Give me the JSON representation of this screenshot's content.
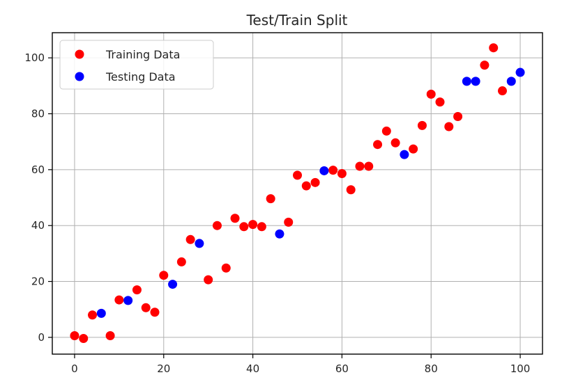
{
  "chart_data": {
    "type": "scatter",
    "title": "Test/Train Split",
    "xlabel": "",
    "ylabel": "",
    "xlim": [
      -5,
      105
    ],
    "ylim": [
      -6,
      109
    ],
    "xticks": [
      0,
      20,
      40,
      60,
      80,
      100
    ],
    "yticks": [
      0,
      20,
      40,
      60,
      80,
      100
    ],
    "grid": true,
    "legend_position": "top-left",
    "series": [
      {
        "name": "Training Data",
        "color": "#ff0000",
        "points": [
          [
            0,
            0.6
          ],
          [
            2,
            -0.4
          ],
          [
            4,
            8
          ],
          [
            8,
            0.6
          ],
          [
            10,
            13.4
          ],
          [
            14,
            17
          ],
          [
            16,
            10.6
          ],
          [
            18,
            9
          ],
          [
            20,
            22.2
          ],
          [
            24,
            27
          ],
          [
            26,
            35
          ],
          [
            30,
            20.6
          ],
          [
            32,
            40
          ],
          [
            34,
            24.8
          ],
          [
            36,
            42.6
          ],
          [
            38,
            39.6
          ],
          [
            40,
            40.4
          ],
          [
            42,
            39.6
          ],
          [
            44,
            49.6
          ],
          [
            48,
            41.2
          ],
          [
            50,
            58
          ],
          [
            52,
            54.2
          ],
          [
            54,
            55.4
          ],
          [
            58,
            59.8
          ],
          [
            60,
            58.6
          ],
          [
            62,
            52.8
          ],
          [
            64,
            61.2
          ],
          [
            66,
            61.2
          ],
          [
            68,
            69
          ],
          [
            70,
            73.8
          ],
          [
            72,
            69.6
          ],
          [
            76,
            67.4
          ],
          [
            78,
            75.8
          ],
          [
            80,
            87
          ],
          [
            82,
            84.2
          ],
          [
            84,
            75.4
          ],
          [
            86,
            79
          ],
          [
            92,
            97.4
          ],
          [
            94,
            103.6
          ],
          [
            96,
            88.2
          ]
        ]
      },
      {
        "name": "Testing Data",
        "color": "#0000ff",
        "points": [
          [
            6,
            8.6
          ],
          [
            12,
            13.2
          ],
          [
            22,
            19
          ],
          [
            28,
            33.6
          ],
          [
            46,
            37
          ],
          [
            56,
            59.6
          ],
          [
            74,
            65.4
          ],
          [
            88,
            91.6
          ],
          [
            90,
            91.6
          ],
          [
            98,
            91.6
          ],
          [
            100,
            94.8
          ]
        ]
      }
    ]
  }
}
